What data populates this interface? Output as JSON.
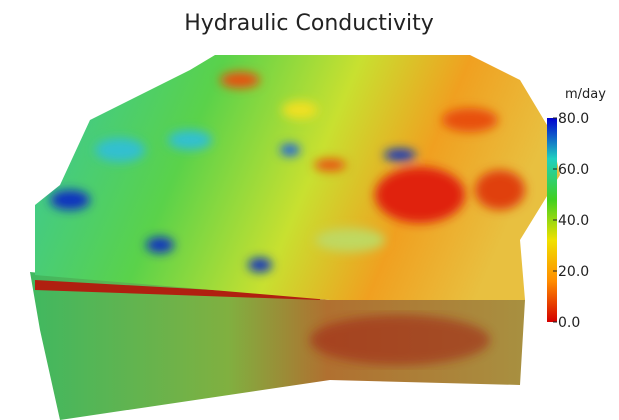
{
  "chart_data": {
    "type": "colormap",
    "title": "Hydraulic Conductivity",
    "colorbar_label": "m/day",
    "clim": [
      0,
      80
    ],
    "ticks": [
      {
        "value": 0,
        "label": "0.0"
      },
      {
        "value": 20,
        "label": "20.0"
      },
      {
        "value": 40,
        "label": "40.0"
      },
      {
        "value": 60,
        "label": "60.0"
      },
      {
        "value": 80,
        "label": "80.0"
      }
    ],
    "colors": [
      "#d40000",
      "#ff8c00",
      "#f0e000",
      "#40d020",
      "#20d0c0",
      "#0000d0"
    ]
  }
}
